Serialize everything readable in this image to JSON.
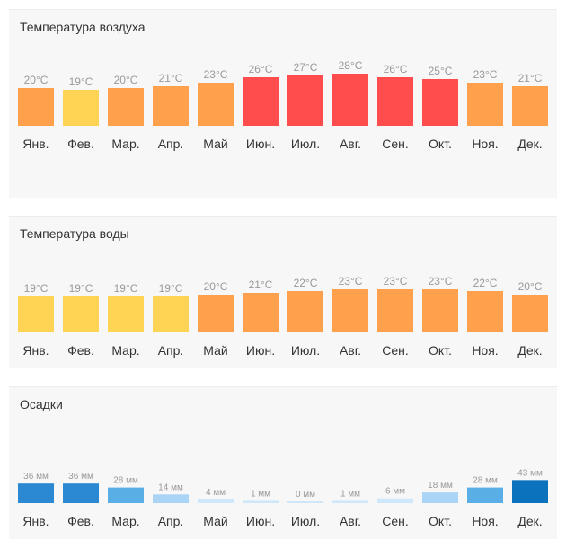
{
  "chart_data": [
    {
      "type": "bar",
      "title": "Температура воздуха",
      "unit": "°C",
      "categories": [
        "Янв.",
        "Фев.",
        "Мар.",
        "Апр.",
        "Май",
        "Июн.",
        "Июл.",
        "Авг.",
        "Сен.",
        "Окт.",
        "Ноя.",
        "Дек."
      ],
      "values": [
        20,
        19,
        20,
        21,
        23,
        26,
        27,
        28,
        26,
        25,
        23,
        21
      ],
      "value_labels": [
        "20°C",
        "19°C",
        "20°C",
        "21°C",
        "23°C",
        "26°C",
        "27°C",
        "28°C",
        "26°C",
        "25°C",
        "23°C",
        "21°C"
      ],
      "colors": [
        "#ffa04d",
        "#ffd454",
        "#ffa04d",
        "#ffa04d",
        "#ffa04d",
        "#ff4d4d",
        "#ff4d4d",
        "#ff4d4d",
        "#ff4d4d",
        "#ff4d4d",
        "#ffa04d",
        "#ffa04d"
      ]
    },
    {
      "type": "bar",
      "title": "Температура воды",
      "unit": "°C",
      "categories": [
        "Янв.",
        "Фев.",
        "Мар.",
        "Апр.",
        "Май",
        "Июн.",
        "Июл.",
        "Авг.",
        "Сен.",
        "Окт.",
        "Ноя.",
        "Дек."
      ],
      "values": [
        19,
        19,
        19,
        19,
        20,
        21,
        22,
        23,
        23,
        23,
        22,
        20
      ],
      "value_labels": [
        "19°C",
        "19°C",
        "19°C",
        "19°C",
        "20°C",
        "21°C",
        "22°C",
        "23°C",
        "23°C",
        "23°C",
        "22°C",
        "20°C"
      ],
      "colors": [
        "#ffd454",
        "#ffd454",
        "#ffd454",
        "#ffd454",
        "#ffa04d",
        "#ffa04d",
        "#ffa04d",
        "#ffa04d",
        "#ffa04d",
        "#ffa04d",
        "#ffa04d",
        "#ffa04d"
      ]
    },
    {
      "type": "bar",
      "title": "Осадки",
      "unit": "мм",
      "categories": [
        "Янв.",
        "Фев.",
        "Мар.",
        "Апр.",
        "Май",
        "Июн.",
        "Июл.",
        "Авг.",
        "Сен.",
        "Окт.",
        "Ноя.",
        "Дек."
      ],
      "values": [
        36,
        36,
        28,
        14,
        4,
        1,
        0,
        1,
        6,
        18,
        28,
        43
      ],
      "value_labels": [
        "36 мм",
        "36 мм",
        "28 мм",
        "14 мм",
        "4 мм",
        "1 мм",
        "0 мм",
        "1 мм",
        "6 мм",
        "18 мм",
        "28 мм",
        "43 мм"
      ],
      "colors": [
        "#2a89d2",
        "#2a89d2",
        "#5aaee6",
        "#aad4f5",
        "#cfe7fa",
        "#cfe7fa",
        "#cfe7fa",
        "#cfe7fa",
        "#cfe7fa",
        "#aad4f5",
        "#5aaee6",
        "#0b72bd"
      ]
    }
  ]
}
